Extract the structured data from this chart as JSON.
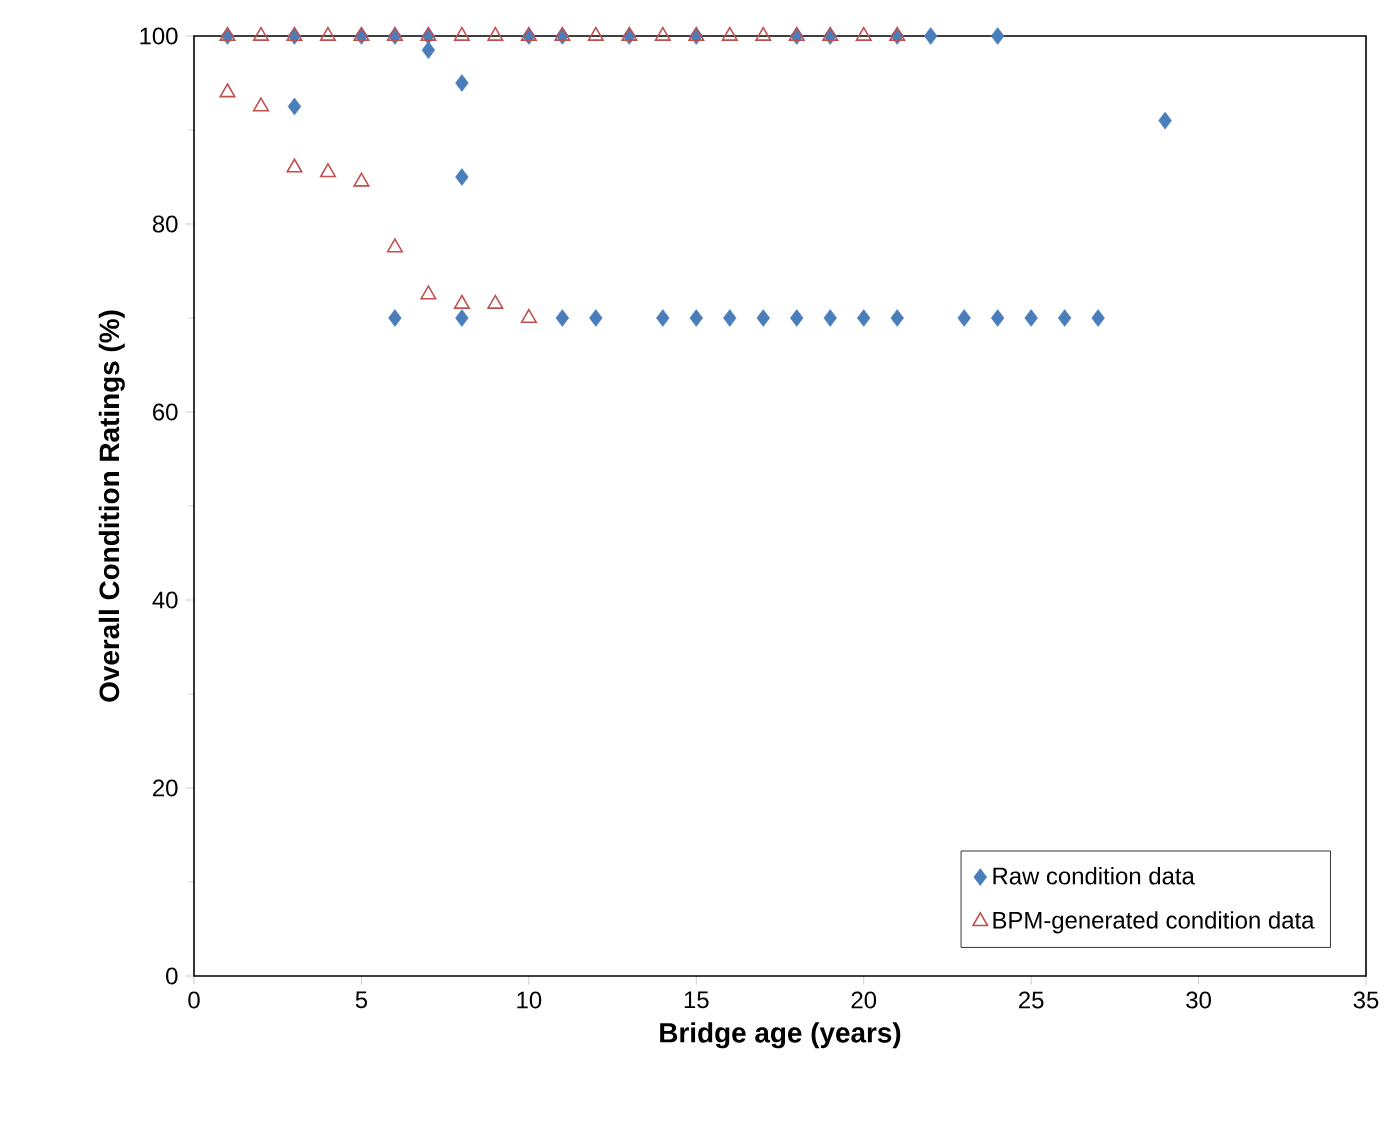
{
  "chart_data": {
    "type": "scatter",
    "xlabel": "Bridge age (years)",
    "ylabel": "Overall Condition Ratings (%)",
    "xlim": [
      0,
      35
    ],
    "xticks": [
      0,
      5,
      10,
      15,
      20,
      25,
      30,
      35
    ],
    "ylim": [
      0,
      100
    ],
    "yticks": [
      0,
      20,
      40,
      60,
      80,
      100
    ],
    "grid": false,
    "legend": "bottom right",
    "series": [
      {
        "name": "Raw condition data",
        "color": "#4a7ebb",
        "marker": "diamond",
        "x": [
          1,
          3,
          5,
          6,
          7,
          10,
          11,
          13,
          15,
          18,
          19,
          21,
          22,
          24,
          7,
          3,
          8,
          8,
          29,
          6,
          8,
          11,
          12,
          14,
          15,
          16,
          17,
          18,
          19,
          20,
          21,
          23,
          24,
          25,
          26,
          27
        ],
        "values": [
          100,
          100,
          100,
          100,
          100,
          100,
          100,
          100,
          100,
          100,
          100,
          100,
          100,
          100,
          98.5,
          92.5,
          95,
          85,
          91,
          70,
          70,
          70,
          70,
          70,
          70,
          70,
          70,
          70,
          70,
          70,
          70,
          70,
          70,
          70,
          70,
          70
        ]
      },
      {
        "name": "BPM-generated condition data",
        "color": "#c0504d",
        "marker": "triangle",
        "x": [
          1,
          2,
          3,
          4,
          5,
          6,
          7,
          8,
          9,
          10,
          11,
          12,
          13,
          14,
          15,
          16,
          17,
          18,
          19,
          20,
          21,
          1,
          2,
          3,
          4,
          5,
          6,
          7,
          8,
          9,
          10
        ],
        "values": [
          100,
          100,
          100,
          100,
          100,
          100,
          100,
          100,
          100,
          100,
          100,
          100,
          100,
          100,
          100,
          100,
          100,
          100,
          100,
          100,
          100,
          94,
          92.5,
          86,
          85.5,
          84.5,
          77.5,
          72.5,
          71.5,
          71.5,
          70
        ]
      }
    ]
  }
}
